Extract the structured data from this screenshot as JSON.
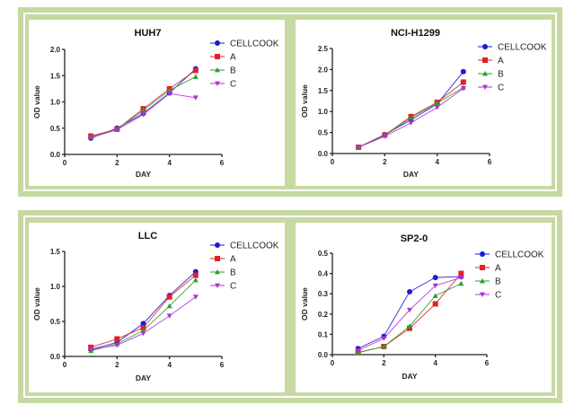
{
  "chart_data": [
    {
      "type": "line",
      "title": "HUH7",
      "xlabel": "DAY",
      "ylabel": "OD value",
      "xlim": [
        0,
        6
      ],
      "ylim": [
        0,
        2.0
      ],
      "xticks": [
        "0",
        "2",
        "4",
        "6"
      ],
      "yticks": [
        "0.0",
        "0.5",
        "1.0",
        "1.5",
        "2.0"
      ],
      "x": [
        1,
        2,
        3,
        4,
        5
      ],
      "legend_position": "top-right",
      "series": [
        {
          "name": "CELLCOOK",
          "color": "#1a1ad6",
          "marker": "circle",
          "values": [
            0.31,
            0.5,
            0.78,
            1.17,
            1.63
          ]
        },
        {
          "name": "A",
          "color": "#e0202a",
          "marker": "square",
          "values": [
            0.35,
            0.48,
            0.87,
            1.25,
            1.6
          ]
        },
        {
          "name": "B",
          "color": "#2aa02a",
          "marker": "triangle-up",
          "values": [
            0.33,
            0.48,
            0.84,
            1.22,
            1.48
          ]
        },
        {
          "name": "C",
          "color": "#b030d8",
          "marker": "triangle-down",
          "values": [
            0.32,
            0.47,
            0.76,
            1.16,
            1.08
          ]
        }
      ]
    },
    {
      "type": "line",
      "title": "NCI-H1299",
      "xlabel": "DAY",
      "ylabel": "OD value",
      "xlim": [
        0,
        6
      ],
      "ylim": [
        0,
        2.5
      ],
      "xticks": [
        "0",
        "2",
        "4",
        "6"
      ],
      "yticks": [
        "0.0",
        "0.5",
        "1.0",
        "1.5",
        "2.0",
        "2.5"
      ],
      "x": [
        1,
        2,
        3,
        4,
        5
      ],
      "legend_position": "top-right",
      "series": [
        {
          "name": "CELLCOOK",
          "color": "#1a1ad6",
          "marker": "circle",
          "values": [
            0.15,
            0.45,
            0.8,
            1.18,
            1.95
          ]
        },
        {
          "name": "A",
          "color": "#e0202a",
          "marker": "square",
          "values": [
            0.15,
            0.44,
            0.88,
            1.22,
            1.7
          ]
        },
        {
          "name": "B",
          "color": "#2aa02a",
          "marker": "triangle-up",
          "values": [
            0.15,
            0.43,
            0.85,
            1.2,
            1.57
          ]
        },
        {
          "name": "C",
          "color": "#b030d8",
          "marker": "triangle-down",
          "values": [
            0.15,
            0.41,
            0.73,
            1.1,
            1.55
          ]
        }
      ]
    },
    {
      "type": "line",
      "title": "LLC",
      "xlabel": "DAY",
      "ylabel": "OD value",
      "xlim": [
        0,
        6
      ],
      "ylim": [
        0,
        1.5
      ],
      "xticks": [
        "0",
        "2",
        "4",
        "6"
      ],
      "yticks": [
        "0.0",
        "0.5",
        "1.0",
        "1.5"
      ],
      "x": [
        1,
        2,
        3,
        4,
        5
      ],
      "legend_position": "top-right",
      "series": [
        {
          "name": "CELLCOOK",
          "color": "#1a1ad6",
          "marker": "circle",
          "values": [
            0.1,
            0.2,
            0.47,
            0.87,
            1.21
          ]
        },
        {
          "name": "A",
          "color": "#e0202a",
          "marker": "square",
          "values": [
            0.13,
            0.25,
            0.41,
            0.85,
            1.16
          ]
        },
        {
          "name": "B",
          "color": "#2aa02a",
          "marker": "triangle-up",
          "values": [
            0.08,
            0.18,
            0.37,
            0.72,
            1.09
          ]
        },
        {
          "name": "C",
          "color": "#b030d8",
          "marker": "triangle-down",
          "values": [
            0.1,
            0.16,
            0.33,
            0.58,
            0.85
          ]
        }
      ]
    },
    {
      "type": "line",
      "title": "SP2-0",
      "xlabel": "DAY",
      "ylabel": "OD value",
      "xlim": [
        0,
        6
      ],
      "ylim": [
        0,
        0.5
      ],
      "xticks": [
        "0",
        "2",
        "4",
        "6"
      ],
      "yticks": [
        "0.0",
        "0.1",
        "0.2",
        "0.3",
        "0.4",
        "0.5"
      ],
      "x": [
        1,
        2,
        3,
        4,
        5
      ],
      "legend_position": "top-right",
      "series": [
        {
          "name": "CELLCOOK",
          "color": "#1a1ad6",
          "marker": "circle",
          "values": [
            0.03,
            0.09,
            0.31,
            0.38,
            0.385
          ]
        },
        {
          "name": "A",
          "color": "#e0202a",
          "marker": "square",
          "values": [
            0.01,
            0.04,
            0.13,
            0.25,
            0.4
          ]
        },
        {
          "name": "B",
          "color": "#2aa02a",
          "marker": "triangle-up",
          "values": [
            0.01,
            0.04,
            0.14,
            0.29,
            0.35
          ]
        },
        {
          "name": "C",
          "color": "#b030d8",
          "marker": "triangle-down",
          "values": [
            0.02,
            0.08,
            0.22,
            0.34,
            0.38
          ]
        }
      ]
    }
  ]
}
